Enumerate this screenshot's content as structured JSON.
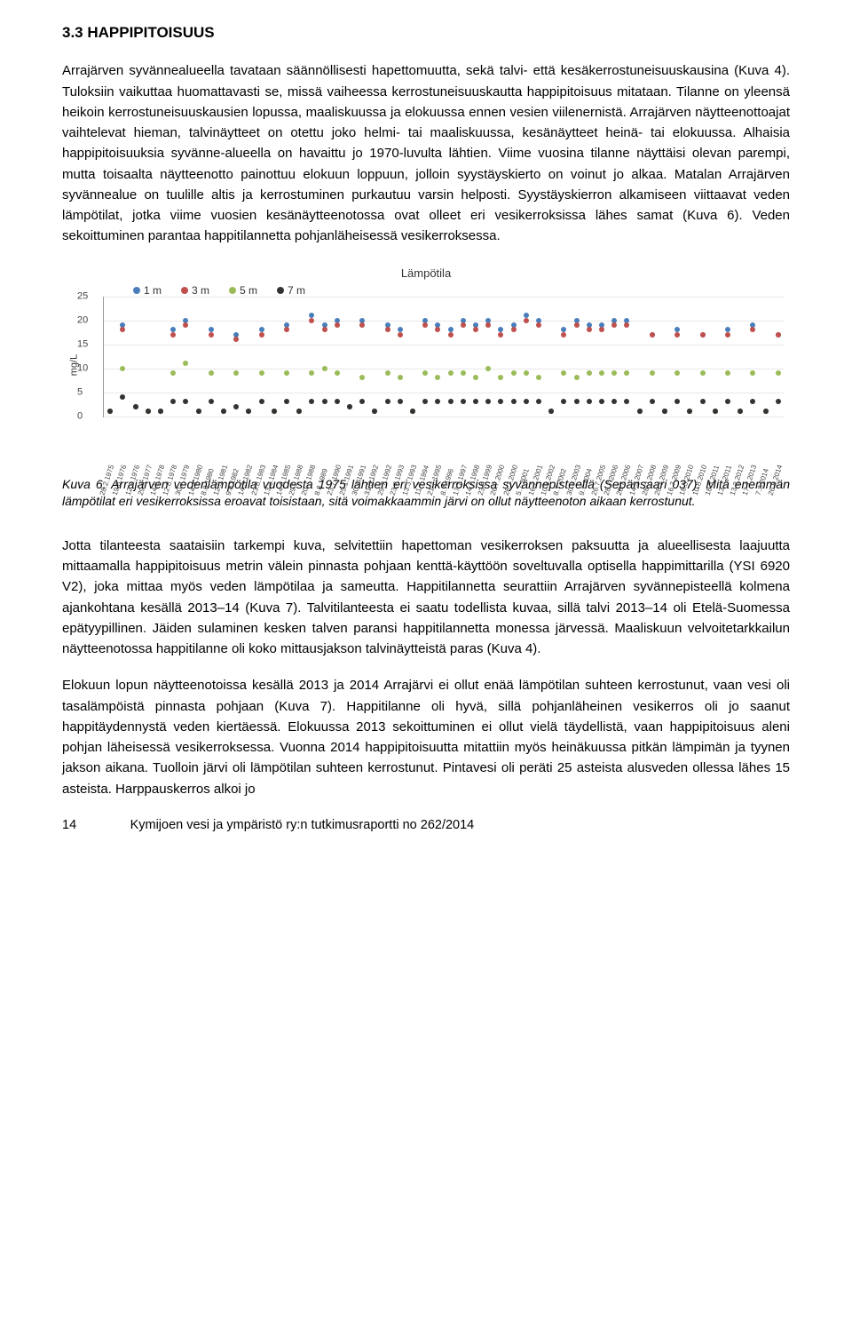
{
  "heading": "3.3 HAPPIPITOISUUS",
  "para1": "Arrajärven syvännealueella tavataan säännöllisesti hapettomuutta, sekä talvi- että kesäkerrostuneisuuskausina (Kuva 4). Tuloksiin vaikuttaa huomattavasti se, missä vaiheessa kerrostuneisuuskautta happipitoisuus mitataan. Tilanne on yleensä heikoin kerrostuneisuuskausien lopussa, maaliskuussa ja elokuussa ennen vesien viilenernistä. Arrajärven näytteenottoajat vaihtelevat hieman, talvinäytteet on otettu joko helmi- tai maaliskuussa, kesänäytteet heinä- tai elokuussa. Alhaisia happipitoisuuksia syvänne-alueella on havaittu jo 1970-luvulta lähtien. Viime vuosina tilanne näyttäisi olevan parempi, mutta toisaalta näytteenotto painottuu elokuun loppuun, jolloin syystäyskierto on voinut jo alkaa. Matalan Arrajärven syvännealue on tuulille altis ja kerrostuminen purkautuu varsin helposti. Syystäyskierron alkamiseen viittaavat veden lämpötilat, jotka viime vuosien kesänäytteenotossa ovat olleet eri vesikerroksissa lähes samat (Kuva 6). Veden sekoittuminen parantaa happitilannetta pohjanläheisessä vesikerroksessa.",
  "chart": {
    "title": "Lämpötila",
    "ylabel": "mg/L",
    "ylim": [
      0,
      25
    ],
    "ytick_step": 5,
    "grid_color": "#e8e8e8",
    "axis_color": "#999999",
    "background_color": "#ffffff",
    "series": [
      {
        "name": "1 m",
        "color": "#4a7ebb"
      },
      {
        "name": "3 m",
        "color": "#c0504d"
      },
      {
        "name": "5 m",
        "color": "#9bbb59"
      },
      {
        "name": "7 m",
        "color": "#333333"
      }
    ],
    "categories": [
      "28.2.1975",
      "19.8.1976",
      "12.2.1976",
      "29.3.1977",
      "14.2.1978",
      "12.8.1978",
      "30.7.1979",
      "14.3.1980",
      "8.8.1980",
      "12.3.1981",
      "9.8.1982",
      "14.3.1982",
      "23.8.1983",
      "13.3.1984",
      "14.8.1985",
      "29.2.1988",
      "20.7.1988",
      "8.8.1989",
      "23.7.1990",
      "25.1.1991",
      "30.7.1991",
      "31.3.1992",
      "29.7.1992",
      "23.7.1993",
      "13.3.1993",
      "11.7.1994",
      "21.7.1995",
      "8.7.1996",
      "17.7.1997",
      "14.7.1998",
      "23.8.1999",
      "26.7.2000",
      "28.7.2000",
      "5.7.2001",
      "16.7.2001",
      "10.3.2002",
      "8.7.2002",
      "30.7.2003",
      "9.7.2004",
      "26.7.2005",
      "28.7.2006",
      "28.7.2006",
      "14.3.2007",
      "28.7.2008",
      "28.3.2009",
      "16.7.2009",
      "18.3.2010",
      "10.8.2010",
      "18.3.2011",
      "13.7.2011",
      "13.3.2012",
      "17.7.2013",
      "7.3.2014",
      "26.8.2014"
    ],
    "values": {
      "s1": [
        1,
        19,
        2,
        1,
        1,
        18,
        20,
        1,
        18,
        1,
        17,
        1,
        18,
        1,
        19,
        1,
        21,
        19,
        20,
        2,
        20,
        1,
        19,
        18,
        1,
        20,
        19,
        18,
        20,
        19,
        20,
        18,
        19,
        21,
        20,
        1,
        18,
        20,
        19,
        19,
        20,
        20,
        1,
        17,
        1,
        18,
        1,
        17,
        1,
        18,
        1,
        19,
        1,
        17
      ],
      "s2": [
        1,
        18,
        2,
        1,
        1,
        17,
        19,
        1,
        17,
        1,
        16,
        1,
        17,
        1,
        18,
        1,
        20,
        18,
        19,
        2,
        19,
        1,
        18,
        17,
        1,
        19,
        18,
        17,
        19,
        18,
        19,
        17,
        18,
        20,
        19,
        1,
        17,
        19,
        18,
        18,
        19,
        19,
        1,
        17,
        1,
        17,
        1,
        17,
        1,
        17,
        1,
        18,
        1,
        17
      ],
      "s3": [
        1,
        10,
        2,
        1,
        1,
        9,
        11,
        1,
        9,
        1,
        9,
        1,
        9,
        1,
        9,
        1,
        9,
        10,
        9,
        2,
        8,
        1,
        9,
        8,
        1,
        9,
        8,
        9,
        9,
        8,
        10,
        8,
        9,
        9,
        8,
        1,
        9,
        8,
        9,
        9,
        9,
        9,
        1,
        9,
        1,
        9,
        1,
        9,
        1,
        9,
        1,
        9,
        1,
        9
      ],
      "s4": [
        1,
        4,
        2,
        1,
        1,
        3,
        3,
        1,
        3,
        1,
        2,
        1,
        3,
        1,
        3,
        1,
        3,
        3,
        3,
        2,
        3,
        1,
        3,
        3,
        1,
        3,
        3,
        3,
        3,
        3,
        3,
        3,
        3,
        3,
        3,
        1,
        3,
        3,
        3,
        3,
        3,
        3,
        1,
        3,
        1,
        3,
        1,
        3,
        1,
        3,
        1,
        3,
        1,
        3
      ]
    },
    "marker_size": 6
  },
  "caption": "Kuva 6. Arrajärven vedenlämpötila vuodesta 1975 lähtien eri vesikerroksissa syvännepisteellä (Sepänsaari 037). Mitä enemmän lämpötilat eri vesikerroksissa eroavat toisistaan, sitä voimakkaammin järvi on ollut näytteenoton aikaan kerrostunut.",
  "para2": "Jotta tilanteesta saataisiin tarkempi kuva, selvitettiin hapettoman vesikerroksen paksuutta ja alueellisesta laajuutta mittaamalla happipitoisuus metrin välein pinnasta pohjaan kenttä-käyttöön soveltuvalla optisella happimittarilla (YSI 6920 V2), joka mittaa myös veden lämpötilaa ja sameutta. Happitilannetta seurattiin Arrajärven syvännepisteellä kolmena ajankohtana kesällä 2013–14 (Kuva 7). Talvitilanteesta ei saatu todellista kuvaa, sillä talvi 2013–14 oli Etelä-Suomessa epätyypillinen. Jäiden sulaminen kesken talven paransi happitilannetta monessa järvessä. Maaliskuun velvoitetarkkailun näytteenotossa happitilanne oli koko mittausjakson talvinäytteistä paras (Kuva 4).",
  "para3": "Elokuun lopun näytteenotoissa kesällä 2013 ja 2014 Arrajärvi ei ollut enää lämpötilan suhteen kerrostunut, vaan vesi oli tasalämpöistä pinnasta pohjaan (Kuva 7). Happitilanne oli hyvä, sillä pohjanläheinen vesikerros oli jo saanut happitäydennystä veden kiertäessä. Elokuussa 2013 sekoittuminen ei ollut vielä täydellistä, vaan happipitoisuus aleni pohjan läheisessä vesikerroksessa. Vuonna 2014 happipitoisuutta mitattiin myös heinäkuussa pitkän lämpimän ja tyynen jakson aikana. Tuolloin järvi oli lämpötilan suhteen kerrostunut. Pintavesi oli peräti 25 asteista alusveden ollessa lähes 15 asteista. Harppauskerros alkoi jo",
  "footer_page": "14",
  "footer_text": "Kymijoen vesi ja ympäristö ry:n tutkimusraportti no 262/2014"
}
